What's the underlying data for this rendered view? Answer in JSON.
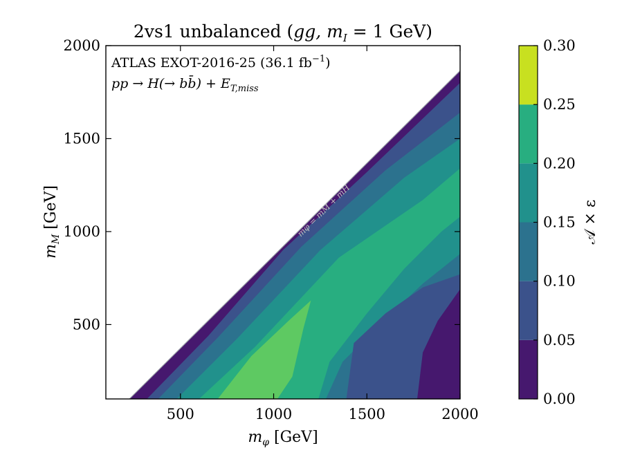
{
  "chart_data": {
    "type": "heatmap",
    "title_prefix": "2vs1 unbalanced (",
    "title_rest": "gg, m",
    "title_sub": "I",
    "title_suffix": " = 1 GeV)",
    "xlabel_var": "m",
    "xlabel_sub": "φ",
    "xlabel_unit": " [GeV]",
    "ylabel_var": "m",
    "ylabel_sub": "M",
    "ylabel_unit": " [GeV]",
    "xlim": [
      100,
      2000
    ],
    "ylim": [
      100,
      2000
    ],
    "x_ticks": [
      500,
      1000,
      1500,
      2000
    ],
    "x_tick_labels": [
      "500",
      "1000",
      "1500",
      "2000"
    ],
    "y_ticks": [
      500,
      1000,
      1500,
      2000
    ],
    "y_tick_labels": [
      "500",
      "1000",
      "1500",
      "2000"
    ],
    "annotation_line1_main": "ATLAS EXOT-2016-25 (36.1 fb",
    "annotation_line1_sup": "−1",
    "annotation_line1_end": ")",
    "annotation_line2": "pp → H(→ bb̄) + E",
    "annotation_line2_sub": "T,miss",
    "diagonal_label": "mφ = mM + mH",
    "colorbar_label": "𝒜 × ε",
    "colorbar_ticks": [
      0.0,
      0.05,
      0.1,
      0.15,
      0.2,
      0.25,
      0.3
    ],
    "colorbar_tick_labels": [
      "0.00",
      "0.05",
      "0.10",
      "0.15",
      "0.20",
      "0.25",
      "0.30"
    ],
    "levels": [
      0.0,
      0.05,
      0.1,
      0.15,
      0.2,
      0.25,
      0.3
    ],
    "level_colors": [
      "#46186e",
      "#3b528b",
      "#2c728e",
      "#21918c",
      "#28ae80",
      "#5ec962",
      "#c8e020"
    ],
    "kinematic_offset": 125,
    "kinematic_slope": 0.995,
    "band_contours": [
      {
        "level": 0.05,
        "points": [
          [
            320,
            100
          ],
          [
            650,
            440
          ],
          [
            1050,
            900
          ],
          [
            1500,
            1320
          ],
          [
            2000,
            1800
          ]
        ]
      },
      {
        "level": 0.1,
        "points": [
          [
            380,
            100
          ],
          [
            700,
            430
          ],
          [
            1150,
            920
          ],
          [
            1600,
            1330
          ],
          [
            2000,
            1640
          ]
        ]
      },
      {
        "level": 0.15,
        "points": [
          [
            480,
            100
          ],
          [
            800,
            420
          ],
          [
            1250,
            900
          ],
          [
            1700,
            1290
          ],
          [
            2000,
            1500
          ]
        ]
      },
      {
        "level": 0.2,
        "points": [
          [
            600,
            100
          ],
          [
            900,
            380
          ],
          [
            1350,
            860
          ],
          [
            1800,
            1170
          ],
          [
            2000,
            1340
          ]
        ]
      },
      {
        "level": 0.25,
        "points": [
          [
            700,
            100
          ],
          [
            880,
            330
          ],
          [
            1080,
            520
          ],
          [
            1200,
            630
          ],
          [
            1160,
            480
          ],
          [
            1100,
            220
          ],
          [
            1020,
            100
          ]
        ]
      }
    ],
    "right_contours": [
      {
        "level": 0.2,
        "points": [
          [
            1240,
            100
          ],
          [
            1300,
            300
          ],
          [
            1500,
            560
          ],
          [
            1700,
            800
          ],
          [
            1900,
            1000
          ],
          [
            2000,
            1080
          ]
        ]
      },
      {
        "level": 0.15,
        "points": [
          [
            1280,
            100
          ],
          [
            1370,
            300
          ],
          [
            1600,
            530
          ],
          [
            1800,
            720
          ],
          [
            2000,
            880
          ]
        ]
      },
      {
        "level": 0.1,
        "points": [
          [
            1390,
            100
          ],
          [
            1430,
            400
          ],
          [
            1600,
            560
          ],
          [
            1800,
            700
          ],
          [
            2000,
            770
          ]
        ]
      },
      {
        "level": 0.05,
        "points": [
          [
            1770,
            100
          ],
          [
            1800,
            350
          ],
          [
            1880,
            520
          ],
          [
            2000,
            690
          ]
        ]
      }
    ]
  }
}
